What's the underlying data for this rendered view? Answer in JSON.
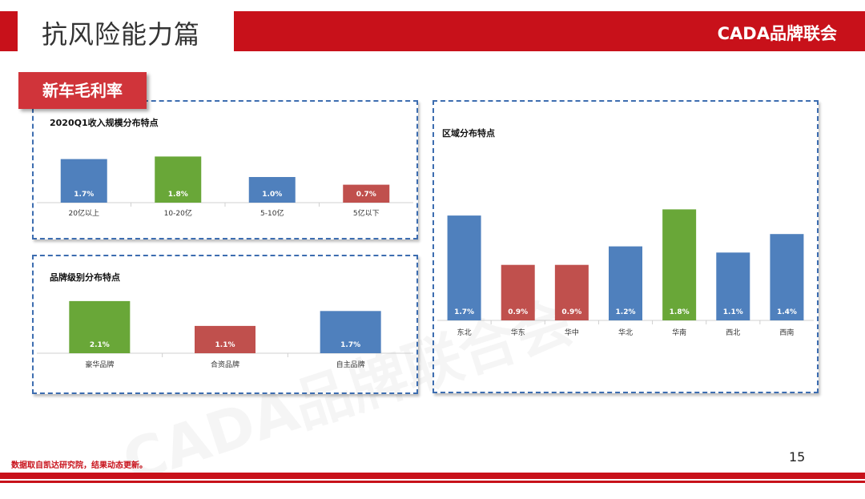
{
  "header": {
    "title": "抗风险能力篇",
    "brand": "CADA品牌联会"
  },
  "section_tab": "新车毛利率",
  "watermark": "CADA品牌联合会",
  "colors": {
    "blue": "#4f80bd",
    "green": "#69a738",
    "red": "#c0504d",
    "accent": "#c8111a"
  },
  "chart_data": [
    {
      "type": "bar",
      "title": "2020Q1收入规模分布特点",
      "categories": [
        "20亿以上",
        "10-20亿",
        "5-10亿",
        "5亿以下"
      ],
      "values": [
        1.7,
        1.8,
        1.0,
        0.7
      ],
      "labels": [
        "1.7%",
        "1.8%",
        "1.0%",
        "0.7%"
      ],
      "bar_colors": [
        "#4f80bd",
        "#69a738",
        "#4f80bd",
        "#c0504d"
      ],
      "unit": "%"
    },
    {
      "type": "bar",
      "title": "品牌级别分布特点",
      "categories": [
        "豪华品牌",
        "合资品牌",
        "自主品牌"
      ],
      "values": [
        2.1,
        1.1,
        1.7
      ],
      "labels": [
        "2.1%",
        "1.1%",
        "1.7%"
      ],
      "bar_colors": [
        "#69a738",
        "#c0504d",
        "#4f80bd"
      ],
      "unit": "%"
    },
    {
      "type": "bar",
      "title": "区域分布特点",
      "categories": [
        "东北",
        "华东",
        "华中",
        "华北",
        "华南",
        "西北",
        "西南"
      ],
      "values": [
        1.7,
        0.9,
        0.9,
        1.2,
        1.8,
        1.1,
        1.4
      ],
      "labels": [
        "1.7%",
        "0.9%",
        "0.9%",
        "1.2%",
        "1.8%",
        "1.1%",
        "1.4%"
      ],
      "bar_colors": [
        "#4f80bd",
        "#c0504d",
        "#c0504d",
        "#4f80bd",
        "#69a738",
        "#4f80bd",
        "#4f80bd"
      ],
      "unit": "%"
    }
  ],
  "footer": {
    "note": "数据取自凯达研究院，结果动态更新。",
    "page_number": "15"
  }
}
